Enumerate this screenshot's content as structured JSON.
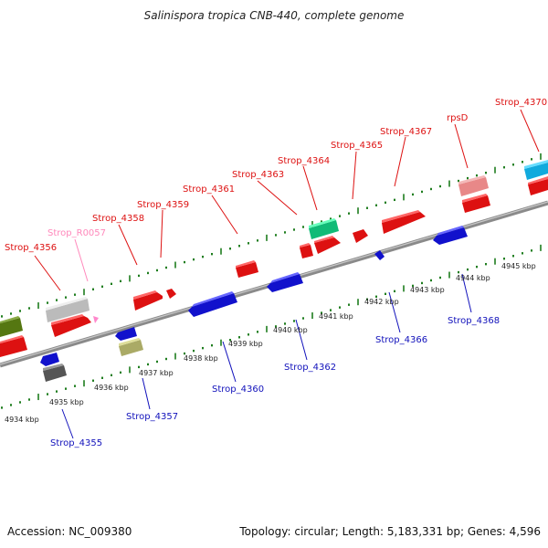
{
  "title": "Salinispora tropica CNB-440, complete genome",
  "footer": {
    "accession": "Accession: NC_009380",
    "stats": "Topology: circular; Length: 5,183,331 bp; Genes: 4,596"
  },
  "colors": {
    "backbone": "#8a8a8a",
    "tick": "#1e7d1e",
    "forward_label": "#dd1111",
    "reverse_label": "#1111bb",
    "rna_label": "#ff88bb"
  },
  "scale_labels": [
    "4934 kbp",
    "4935 kbp",
    "4936 kbp",
    "4937 kbp",
    "4938 kbp",
    "4939 kbp",
    "4940 kbp",
    "4941 kbp",
    "4942 kbp",
    "4943 kbp",
    "4944 kbp",
    "4945 kbp"
  ],
  "forward_gene_labels": [
    "Strop_4356",
    "Strop_R0057",
    "Strop_4358",
    "Strop_4359",
    "Strop_4361",
    "Strop_4363",
    "Strop_4364",
    "Strop_4365",
    "Strop_4367",
    "rpsD",
    "Strop_4370"
  ],
  "reverse_gene_labels": [
    "Strop_4355",
    "Strop_4357",
    "Strop_4360",
    "Strop_4362",
    "Strop_4366",
    "Strop_4368"
  ]
}
